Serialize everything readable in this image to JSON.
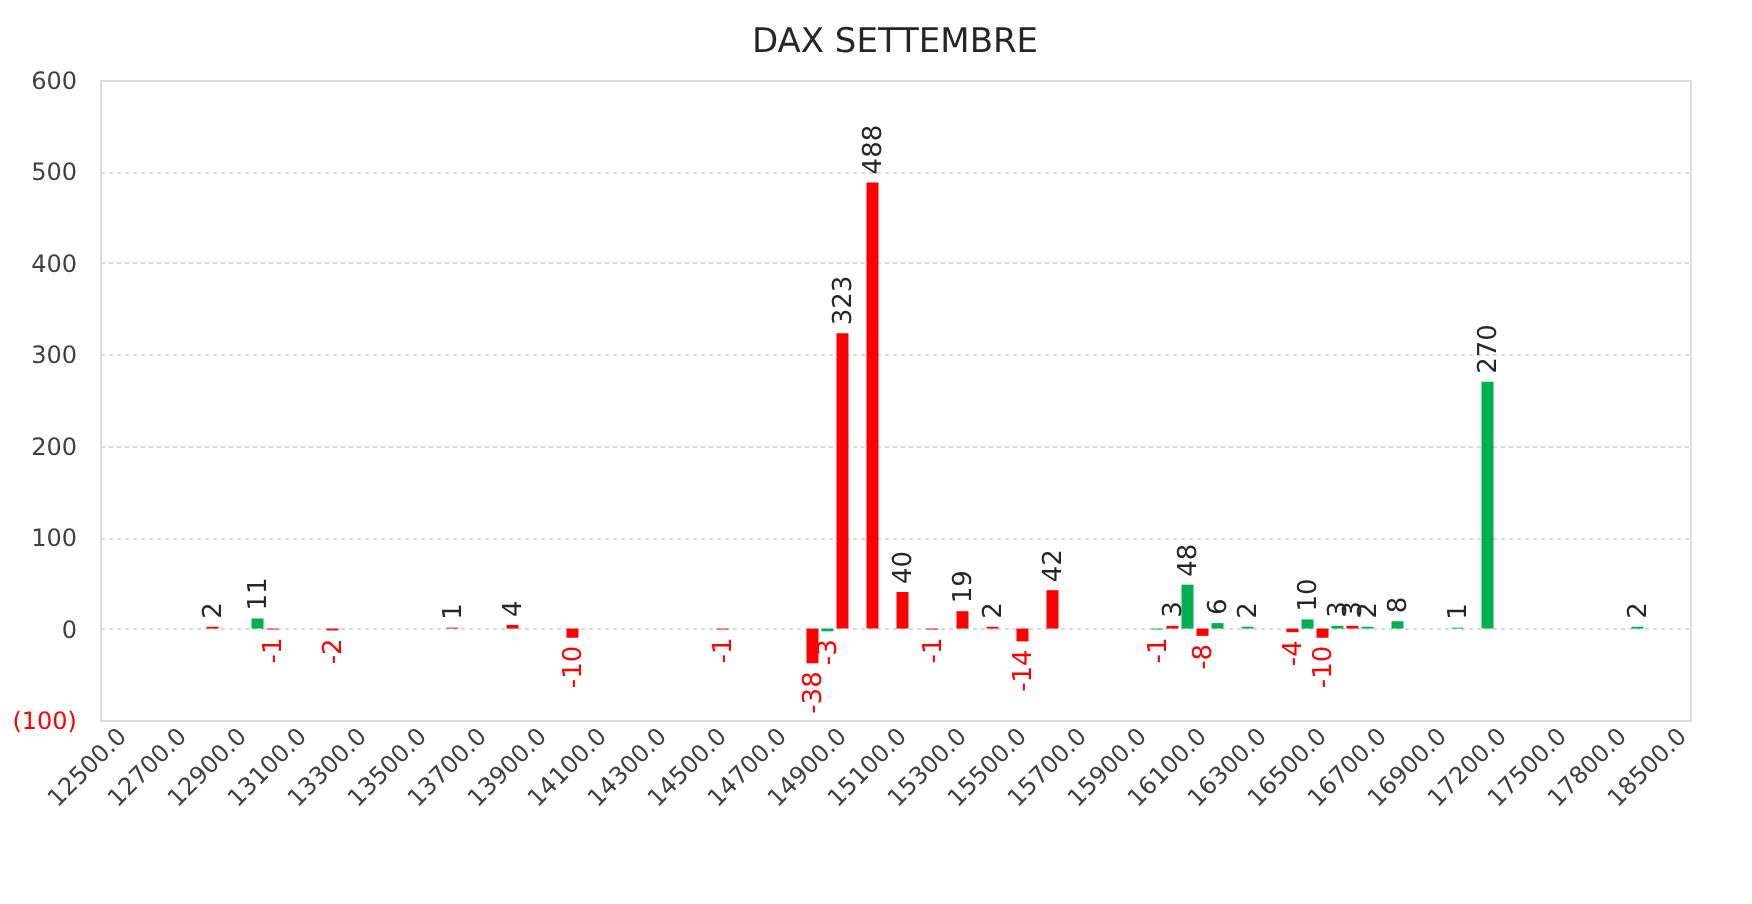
{
  "chart_data": {
    "type": "bar",
    "title": "DAX SETTEMBRE",
    "categories": [
      "12500.0",
      null,
      "12700.0",
      null,
      "12900.0",
      null,
      "13100.0",
      null,
      "13300.0",
      null,
      "13500.0",
      null,
      "13700.0",
      null,
      "13900.0",
      null,
      "14100.0",
      null,
      "14300.0",
      null,
      "14500.0",
      null,
      "14700.0",
      null,
      "14900.0",
      null,
      "15100.0",
      null,
      "15300.0",
      null,
      "15500.0",
      null,
      "15700.0",
      null,
      "15900.0",
      null,
      "16100.0",
      null,
      "16300.0",
      null,
      "16500.0",
      null,
      "16700.0",
      null,
      "16900.0",
      null,
      "17200.0",
      null,
      "17500.0",
      null,
      "17800.0",
      null,
      "18500.0"
    ],
    "series": [
      {
        "color": "#00b050",
        "values": [
          null,
          null,
          null,
          null,
          null,
          11,
          null,
          null,
          null,
          null,
          null,
          null,
          null,
          null,
          null,
          null,
          null,
          null,
          null,
          null,
          null,
          null,
          null,
          null,
          -3,
          null,
          null,
          null,
          null,
          null,
          null,
          null,
          null,
          null,
          null,
          -1,
          48,
          6,
          2,
          null,
          10,
          3,
          2,
          8,
          null,
          1,
          270,
          null,
          null,
          null,
          null,
          2,
          null
        ]
      },
      {
        "color": "#ff0000",
        "values": [
          null,
          null,
          null,
          2,
          null,
          -1,
          null,
          -2,
          null,
          null,
          null,
          1,
          null,
          4,
          null,
          -10,
          null,
          null,
          null,
          null,
          -1,
          null,
          null,
          -38,
          323,
          488,
          40,
          -1,
          19,
          2,
          -14,
          42,
          null,
          null,
          null,
          3,
          -8,
          null,
          null,
          -4,
          -10,
          3,
          null,
          null,
          null,
          null,
          null,
          null,
          null,
          null,
          null,
          null,
          null
        ]
      }
    ],
    "ylim": [
      -100,
      600
    ],
    "yticks": [
      {
        "value": -100,
        "label": "(100)"
      },
      0,
      100,
      200,
      300,
      400,
      500,
      600
    ],
    "grid": "y",
    "legend": false,
    "data_labels": true
  }
}
